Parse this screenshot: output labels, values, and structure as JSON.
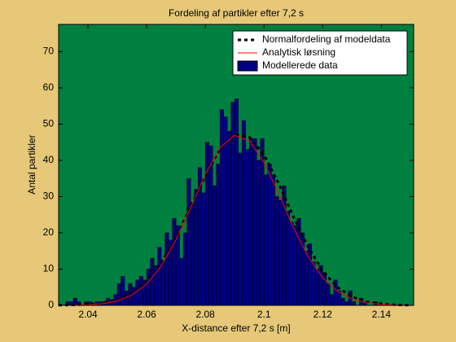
{
  "chart_data": {
    "type": "histogram",
    "title": "Fordeling af partikler efter 7,2 s",
    "x_label": "X-distance efter 7,2 s [m]",
    "y_label": "Antal partikler",
    "xlim": [
      2.03,
      2.151
    ],
    "ylim": [
      0,
      77.5
    ],
    "xticks": [
      2.04,
      2.06,
      2.08,
      2.1,
      2.12,
      2.14
    ],
    "yticks": [
      0,
      10,
      20,
      30,
      40,
      50,
      60,
      70
    ],
    "legend": "top-right",
    "series": [
      {
        "name": "Normalfordeling af modeldata",
        "type": "line",
        "color": "#000000",
        "dashed": true,
        "x": [
          2.03,
          2.035,
          2.04,
          2.045,
          2.05,
          2.055,
          2.06,
          2.065,
          2.07,
          2.075,
          2.08,
          2.085,
          2.09,
          2.095,
          2.1,
          2.105,
          2.11,
          2.115,
          2.12,
          2.125,
          2.13,
          2.135,
          2.14,
          2.145,
          2.15
        ],
        "values": [
          0.04,
          0.1,
          0.28,
          0.72,
          1.65,
          3.5,
          6.7,
          11.8,
          18.7,
          27.2,
          35.8,
          43.2,
          47.1,
          46.4,
          41.5,
          33.6,
          24.5,
          16.1,
          9.5,
          5.0,
          2.4,
          1.0,
          0.4,
          0.14,
          0.04
        ]
      },
      {
        "name": "Analytisk løsning",
        "type": "line",
        "color": "#ff0000",
        "dashed": false,
        "x": [
          2.03,
          2.035,
          2.04,
          2.045,
          2.05,
          2.055,
          2.06,
          2.065,
          2.07,
          2.075,
          2.08,
          2.085,
          2.09,
          2.095,
          2.1,
          2.105,
          2.11,
          2.115,
          2.12,
          2.125,
          2.13,
          2.135,
          2.14,
          2.145,
          2.15
        ],
        "values": [
          0.02,
          0.05,
          0.17,
          0.48,
          1.23,
          2.85,
          5.87,
          10.9,
          18.1,
          27.0,
          36.2,
          43.5,
          46.9,
          45.4,
          39.4,
          30.8,
          21.5,
          13.5,
          7.6,
          3.86,
          1.75,
          0.71,
          0.26,
          0.09,
          0.03
        ]
      },
      {
        "name": "Modellerede data",
        "type": "histogram",
        "color": "#000080",
        "bins": [
          2.03,
          2.03125,
          2.0325,
          2.03375,
          2.035,
          2.03625,
          2.0375,
          2.03875,
          2.04,
          2.04125,
          2.0425,
          2.04375,
          2.045,
          2.04625,
          2.0475,
          2.04875,
          2.05,
          2.05125,
          2.0525,
          2.05375,
          2.055,
          2.05625,
          2.0575,
          2.05875,
          2.06,
          2.06125,
          2.0625,
          2.06375,
          2.065,
          2.06625,
          2.0675,
          2.06875,
          2.07,
          2.07125,
          2.0725,
          2.07375,
          2.075,
          2.07625,
          2.0775,
          2.07875,
          2.08,
          2.08125,
          2.0825,
          2.08375,
          2.085,
          2.08625,
          2.0875,
          2.08875,
          2.09,
          2.09125,
          2.0925,
          2.09375,
          2.095,
          2.09625,
          2.0975,
          2.09875,
          2.1,
          2.10125,
          2.1025,
          2.10375,
          2.105,
          2.10625,
          2.1075,
          2.10875,
          2.11,
          2.11125,
          2.1125,
          2.11375,
          2.115,
          2.11625,
          2.1175,
          2.11875,
          2.12,
          2.12125,
          2.1225,
          2.12375,
          2.125,
          2.12625,
          2.1275,
          2.12875,
          2.13,
          2.13125,
          2.1325,
          2.13375,
          2.135,
          2.13625,
          2.1375,
          2.13875,
          2.14,
          2.14125,
          2.1425,
          2.14375,
          2.145,
          2.14625,
          2.1475,
          2.14875,
          2.15
        ],
        "values": [
          0,
          0,
          1,
          1,
          2,
          1,
          0,
          1,
          1,
          0,
          1,
          1,
          1,
          2,
          1,
          3,
          6,
          8,
          4,
          6,
          5,
          7,
          8,
          7,
          10,
          13,
          11,
          16,
          12,
          20,
          18,
          24,
          22,
          13,
          20,
          35,
          28,
          32,
          38,
          31,
          45,
          44,
          33,
          39,
          54,
          52,
          48,
          56,
          57,
          42,
          51,
          43,
          46,
          46,
          40,
          46,
          36,
          39,
          36,
          30,
          29,
          33,
          26,
          23,
          22,
          24,
          20,
          15,
          17,
          12,
          10,
          11,
          9,
          6,
          3,
          7,
          4,
          2,
          1,
          4,
          1,
          0,
          2,
          1,
          0,
          0,
          1,
          0,
          0,
          0,
          0,
          0,
          0,
          0,
          0,
          0
        ]
      }
    ]
  }
}
